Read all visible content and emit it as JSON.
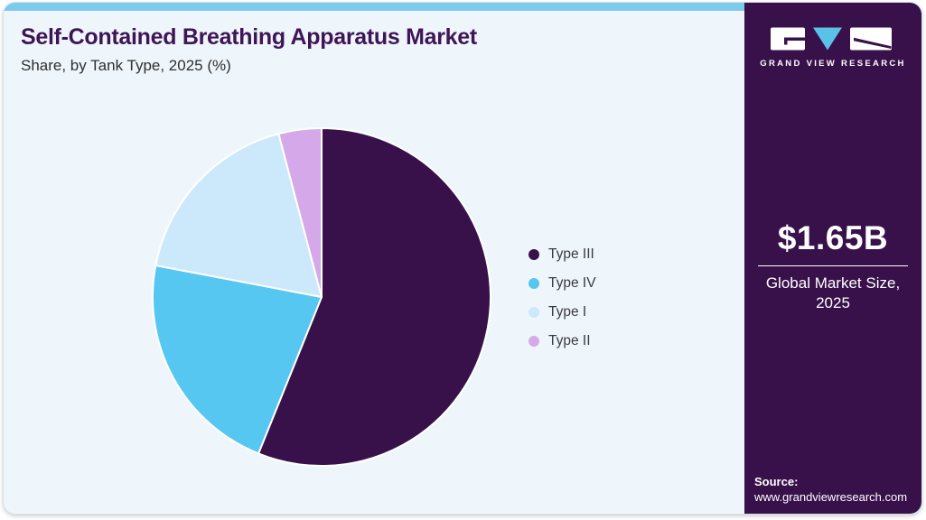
{
  "page": {
    "background": "#FFFFFF"
  },
  "card": {
    "background": "#EFF6FB",
    "accent_stripe_color": "#7DCBEC",
    "border_color": "#D8E0E6"
  },
  "header": {
    "title": "Self-Contained Breathing Apparatus Market",
    "subtitle": "Share, by Tank Type, 2025 (%)",
    "title_color": "#3E1556"
  },
  "chart_data": {
    "type": "pie",
    "title": "Self-Contained Breathing Apparatus Market Share, by Tank Type, 2025 (%)",
    "categories": [
      "Type III",
      "Type IV",
      "Type I",
      "Type II"
    ],
    "values": [
      56.1,
      21.9,
      17.9,
      4.1
    ],
    "unit": "%",
    "colors": [
      "#38114B",
      "#55C7F1",
      "#CBE9FB",
      "#D5A9E9"
    ],
    "start_angle_deg": 0,
    "direction": "clockwise",
    "legend_position": "right",
    "data_labels_shown": false,
    "slice_border_color": "#FFFFFF"
  },
  "sidebar": {
    "background": "#38114B",
    "brand": "GRAND VIEW RESEARCH",
    "logo_triangle_color": "#5BC2E7",
    "stat_value": "$1.65B",
    "stat_label": "Global Market Size, 2025",
    "source_label": "Source:",
    "source_url": "www.grandviewresearch.com"
  }
}
